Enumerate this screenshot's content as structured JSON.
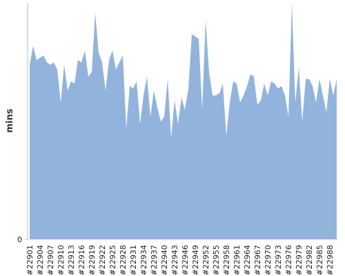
{
  "chart_data": {
    "type": "area",
    "y_label": "mins",
    "color": "#92b4dc",
    "categories": [
      "#22901",
      null,
      null,
      "#22904",
      null,
      null,
      "#22907",
      null,
      null,
      "#22910",
      null,
      null,
      "#22913",
      null,
      null,
      "#22916",
      null,
      null,
      "#22919",
      null,
      null,
      "#22922",
      null,
      null,
      "#22925",
      null,
      null,
      "#22928",
      null,
      null,
      "#22931",
      null,
      null,
      "#22934",
      null,
      null,
      "#22937",
      null,
      null,
      "#22940",
      null,
      null,
      "#22943",
      null,
      null,
      "#22946",
      null,
      null,
      "#22949",
      null,
      null,
      "#22952",
      null,
      null,
      "#22955",
      null,
      null,
      "#22958",
      null,
      null,
      "#22961",
      null,
      null,
      "#22964",
      null,
      null,
      "#22967",
      null,
      null,
      "#22970",
      null,
      null,
      "#22973",
      null,
      null,
      "#22976",
      null,
      null,
      "#22979",
      null,
      null,
      "#22982",
      null,
      null,
      "#22985",
      null,
      null,
      "#22988",
      null,
      null
    ],
    "values": [
      74,
      82,
      76,
      77,
      78,
      75,
      74,
      75,
      72,
      58,
      74,
      63,
      67,
      66,
      76,
      75,
      80,
      69,
      71,
      96,
      79,
      75,
      63,
      76,
      80,
      72,
      75,
      78,
      47,
      65,
      64,
      67,
      49,
      61,
      69,
      52,
      63,
      56,
      50,
      52,
      68,
      43,
      59,
      49,
      60,
      55,
      64,
      87,
      86,
      85,
      55,
      93,
      71,
      61,
      61,
      62,
      66,
      44,
      58,
      67,
      66,
      58,
      61,
      65,
      70,
      69,
      57,
      59,
      66,
      61,
      67,
      66,
      64,
      65,
      61,
      52,
      100,
      58,
      73,
      50,
      68,
      68,
      65,
      58,
      68,
      61,
      54,
      68,
      61,
      68
    ],
    "ylim": [
      0,
      100
    ],
    "yticks": [
      0
    ],
    "grid": false
  }
}
